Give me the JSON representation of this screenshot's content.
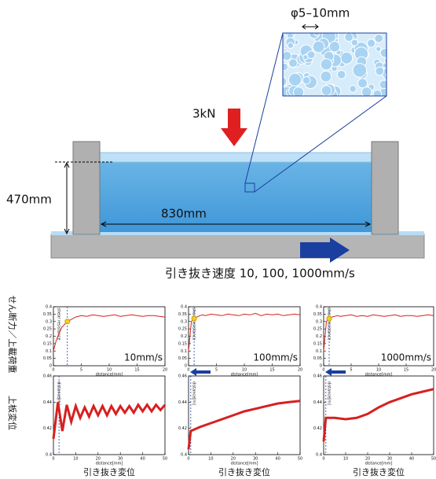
{
  "diagram": {
    "particle_size": "φ5–10mm",
    "load": "3kN",
    "height": "470mm",
    "length": "830mm",
    "pull_speed": "引き抜き速度 10, 100, 1000mm/s"
  },
  "row_labels": [
    "せん断力／上載荷重",
    "上板変位"
  ],
  "captions": [
    "引き抜き変位",
    "引き抜き変位",
    "引き抜き変位"
  ],
  "chart_data": [
    {
      "type": "line",
      "speed": "10mm/s",
      "ylabel": "shear resistance",
      "xlabel": "distance[mm]",
      "color": "#d62020",
      "x": [
        0,
        0.5,
        1,
        1.5,
        2,
        2.5,
        3,
        4,
        5,
        6,
        7,
        8,
        9,
        10,
        11,
        12,
        13,
        14,
        15,
        16,
        17,
        18,
        19,
        20
      ],
      "values": [
        0.1,
        0.17,
        0.22,
        0.26,
        0.28,
        0.3,
        0.31,
        0.33,
        0.34,
        0.335,
        0.345,
        0.34,
        0.335,
        0.34,
        0.345,
        0.335,
        0.34,
        0.345,
        0.34,
        0.335,
        0.34,
        0.34,
        0.335,
        0.33
      ],
      "marker": {
        "x": 2.5,
        "y": 0.3
      },
      "xlim": [
        0,
        20
      ],
      "xticks": [
        0,
        5,
        10,
        15,
        20
      ],
      "ylim": [
        0,
        0.4
      ],
      "yticks": [
        0,
        0.05,
        0.1,
        0.15,
        0.2,
        0.25,
        0.3,
        0.35,
        0.4
      ]
    },
    {
      "type": "line",
      "speed": "100mm/s",
      "ylabel": "shear resistance",
      "xlabel": "distance[mm]",
      "color": "#d62020",
      "x": [
        0,
        0.5,
        1,
        1.5,
        2,
        2.5,
        3,
        4,
        5,
        6,
        7,
        8,
        9,
        10,
        11,
        12,
        13,
        14,
        15,
        16,
        17,
        18,
        19,
        20
      ],
      "values": [
        0.1,
        0.3,
        0.32,
        0.33,
        0.34,
        0.345,
        0.34,
        0.35,
        0.345,
        0.34,
        0.35,
        0.345,
        0.34,
        0.35,
        0.345,
        0.355,
        0.34,
        0.35,
        0.345,
        0.35,
        0.34,
        0.345,
        0.35,
        0.345
      ],
      "marker": {
        "x": 1,
        "y": 0.32
      },
      "xlim": [
        0,
        20
      ],
      "xticks": [
        0,
        5,
        10,
        15,
        20
      ],
      "ylim": [
        0,
        0.4
      ],
      "yticks": [
        0,
        0.05,
        0.1,
        0.15,
        0.2,
        0.25,
        0.3,
        0.35,
        0.4
      ]
    },
    {
      "type": "line",
      "speed": "1000mm/s",
      "ylabel": "shear resistance",
      "xlabel": "distance[mm]",
      "color": "#d62020",
      "x": [
        0,
        0.5,
        1,
        1.5,
        2,
        2.5,
        3,
        4,
        5,
        6,
        7,
        8,
        9,
        10,
        11,
        12,
        13,
        14,
        15,
        16,
        17,
        18,
        19,
        20
      ],
      "values": [
        0.1,
        0.3,
        0.32,
        0.33,
        0.335,
        0.34,
        0.335,
        0.34,
        0.345,
        0.335,
        0.34,
        0.335,
        0.345,
        0.34,
        0.335,
        0.34,
        0.345,
        0.335,
        0.34,
        0.34,
        0.335,
        0.34,
        0.345,
        0.34
      ],
      "marker": {
        "x": 1,
        "y": 0.32
      },
      "xlim": [
        0,
        20
      ],
      "xticks": [
        0,
        5,
        10,
        15,
        20
      ],
      "ylim": [
        0,
        0.4
      ],
      "yticks": [
        0,
        0.05,
        0.1,
        0.15,
        0.2,
        0.25,
        0.3,
        0.35,
        0.4
      ]
    },
    {
      "type": "line",
      "ylabel": "distance[m]",
      "xlabel": "distance[mm]",
      "color": "#d62020",
      "x": [
        0,
        2,
        4,
        6,
        8,
        10,
        12,
        14,
        16,
        18,
        20,
        22,
        24,
        26,
        28,
        30,
        32,
        34,
        36,
        38,
        40,
        42,
        44,
        46,
        48,
        50
      ],
      "values": [
        0.412,
        0.44,
        0.418,
        0.438,
        0.425,
        0.437,
        0.428,
        0.436,
        0.429,
        0.437,
        0.43,
        0.437,
        0.43,
        0.437,
        0.431,
        0.437,
        0.432,
        0.437,
        0.432,
        0.438,
        0.433,
        0.438,
        0.433,
        0.438,
        0.434,
        0.438
      ],
      "marker_x": 2.5,
      "xlim": [
        0,
        50
      ],
      "xticks": [
        0,
        10,
        20,
        30,
        40,
        50
      ],
      "ylim": [
        0.4,
        0.46
      ],
      "yticks": [
        0.4,
        0.42,
        0.44,
        0.46
      ]
    },
    {
      "type": "line",
      "ylabel": "distance[m]",
      "xlabel": "distance[mm]",
      "color": "#d62020",
      "x": [
        0,
        1,
        5,
        10,
        15,
        20,
        25,
        30,
        35,
        40,
        45,
        50
      ],
      "values": [
        0.404,
        0.418,
        0.421,
        0.424,
        0.427,
        0.43,
        0.433,
        0.435,
        0.437,
        0.439,
        0.44,
        0.441
      ],
      "marker_x": 1,
      "xlim": [
        0,
        50
      ],
      "xticks": [
        0,
        10,
        20,
        30,
        40,
        50
      ],
      "ylim": [
        0.4,
        0.46
      ],
      "yticks": [
        0.4,
        0.42,
        0.44,
        0.46
      ]
    },
    {
      "type": "line",
      "ylabel": "distance[m]",
      "xlabel": "distance[mm]",
      "color": "#d62020",
      "x": [
        0,
        1,
        5,
        10,
        15,
        20,
        25,
        30,
        35,
        40,
        45,
        50
      ],
      "values": [
        0.41,
        0.428,
        0.428,
        0.427,
        0.428,
        0.431,
        0.436,
        0.44,
        0.443,
        0.446,
        0.448,
        0.45
      ],
      "marker_x": 1,
      "xlim": [
        0,
        50
      ],
      "xticks": [
        0,
        10,
        20,
        30,
        40,
        50
      ],
      "ylim": [
        0.4,
        0.46
      ],
      "yticks": [
        0.4,
        0.42,
        0.44,
        0.46
      ]
    }
  ]
}
